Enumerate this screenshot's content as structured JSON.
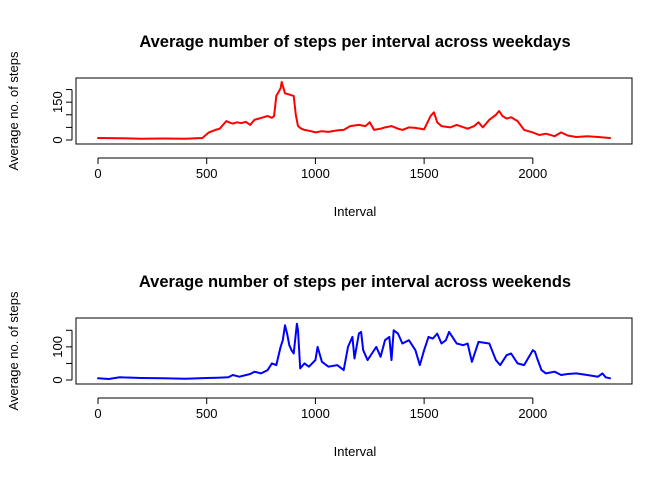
{
  "chart_data": [
    {
      "type": "line",
      "title": "Average number of steps per interval across weekdays",
      "xlabel": "Interval",
      "ylabel": "Average no. of steps",
      "xlim": [
        0,
        2355
      ],
      "ylim": [
        0,
        230
      ],
      "xticks": [
        0,
        500,
        1000,
        1500,
        2000
      ],
      "yticks": [
        0,
        50,
        100,
        150,
        200
      ],
      "ytick_labels": [
        "0",
        "",
        "",
        "150",
        ""
      ],
      "grid": false,
      "series": [
        {
          "color": "#FF0000",
          "x": [
            0,
            100,
            200,
            300,
            400,
            480,
            510,
            540,
            560,
            575,
            590,
            610,
            620,
            640,
            660,
            680,
            700,
            720,
            740,
            760,
            780,
            800,
            810,
            820,
            830,
            840,
            845,
            860,
            880,
            900,
            910,
            920,
            935,
            950,
            980,
            1000,
            1030,
            1060,
            1100,
            1130,
            1160,
            1200,
            1230,
            1250,
            1270,
            1300,
            1320,
            1350,
            1380,
            1400,
            1430,
            1460,
            1500,
            1530,
            1545,
            1560,
            1580,
            1620,
            1650,
            1700,
            1730,
            1750,
            1770,
            1800,
            1830,
            1845,
            1860,
            1880,
            1900,
            1930,
            1960,
            2000,
            2030,
            2060,
            2100,
            2130,
            2160,
            2200,
            2250,
            2300,
            2355
          ],
          "y": [
            8,
            7,
            5,
            6,
            5,
            8,
            30,
            40,
            45,
            60,
            75,
            68,
            65,
            70,
            67,
            72,
            60,
            80,
            85,
            90,
            95,
            88,
            95,
            175,
            190,
            205,
            230,
            185,
            180,
            175,
            100,
            55,
            45,
            40,
            35,
            30,
            35,
            32,
            38,
            40,
            55,
            60,
            55,
            70,
            40,
            45,
            50,
            55,
            45,
            40,
            50,
            48,
            42,
            95,
            110,
            70,
            55,
            50,
            60,
            45,
            55,
            70,
            50,
            80,
            100,
            115,
            95,
            85,
            90,
            75,
            40,
            30,
            20,
            25,
            15,
            30,
            18,
            12,
            15,
            12,
            8
          ]
        }
      ]
    },
    {
      "type": "line",
      "title": "Average number of steps per interval across weekends",
      "xlabel": "Interval",
      "ylabel": "Average no. of steps",
      "xlim": [
        0,
        2355
      ],
      "ylim": [
        0,
        175
      ],
      "xticks": [
        0,
        500,
        1000,
        1500,
        2000
      ],
      "yticks": [
        0,
        50,
        100,
        150
      ],
      "ytick_labels": [
        "0",
        "",
        "100",
        ""
      ],
      "grid": false,
      "series": [
        {
          "color": "#0000FF",
          "x": [
            0,
            50,
            100,
            200,
            300,
            400,
            500,
            550,
            600,
            620,
            650,
            700,
            720,
            750,
            780,
            800,
            820,
            840,
            850,
            860,
            870,
            880,
            890,
            900,
            915,
            920,
            930,
            950,
            970,
            1000,
            1010,
            1030,
            1060,
            1100,
            1130,
            1150,
            1170,
            1180,
            1200,
            1210,
            1220,
            1240,
            1260,
            1280,
            1300,
            1320,
            1340,
            1350,
            1360,
            1380,
            1400,
            1430,
            1460,
            1480,
            1500,
            1520,
            1540,
            1560,
            1580,
            1600,
            1615,
            1630,
            1650,
            1680,
            1700,
            1720,
            1750,
            1800,
            1830,
            1850,
            1880,
            1900,
            1930,
            1960,
            2000,
            2010,
            2020,
            2040,
            2060,
            2100,
            2130,
            2160,
            2200,
            2250,
            2300,
            2320,
            2335,
            2355
          ],
          "y": [
            5,
            3,
            8,
            6,
            5,
            4,
            6,
            7,
            8,
            15,
            10,
            18,
            25,
            20,
            30,
            50,
            45,
            100,
            120,
            165,
            140,
            105,
            90,
            80,
            170,
            150,
            35,
            50,
            40,
            60,
            100,
            55,
            40,
            45,
            30,
            100,
            130,
            65,
            140,
            145,
            90,
            60,
            80,
            100,
            70,
            120,
            130,
            60,
            150,
            140,
            110,
            120,
            90,
            45,
            90,
            130,
            125,
            140,
            110,
            120,
            145,
            130,
            110,
            105,
            110,
            55,
            115,
            110,
            60,
            45,
            75,
            80,
            50,
            45,
            90,
            85,
            65,
            30,
            20,
            25,
            15,
            18,
            20,
            15,
            10,
            20,
            8,
            5
          ]
        }
      ]
    }
  ]
}
